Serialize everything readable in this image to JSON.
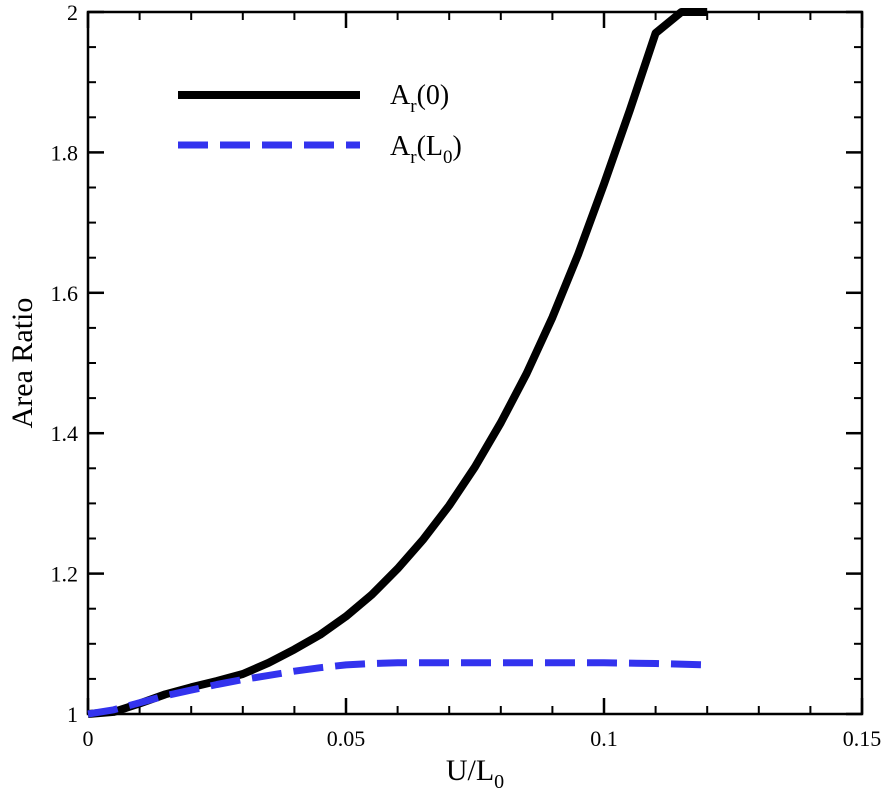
{
  "chart_data": {
    "type": "line",
    "xlabel": {
      "base": "U/L",
      "sub": "0"
    },
    "ylabel": "Area Ratio",
    "xlim": [
      0,
      0.15
    ],
    "ylim": [
      1,
      2
    ],
    "xticks": [
      0,
      0.05,
      0.1,
      0.15
    ],
    "xtick_labels": [
      "0",
      "0.05",
      "0.1",
      "0.15"
    ],
    "yticks": [
      1,
      1.2,
      1.4,
      1.6,
      1.8,
      2
    ],
    "ytick_labels": [
      "1",
      "1.2",
      "1.4",
      "1.6",
      "1.8",
      "2"
    ],
    "grid": false,
    "legend_position": "top-left",
    "series": [
      {
        "legend": {
          "base": "A",
          "sub": "r",
          "suffix": "(0)"
        },
        "color": "#000000",
        "style": "solid",
        "x": [
          0,
          0.005,
          0.01,
          0.015,
          0.02,
          0.025,
          0.03,
          0.035,
          0.04,
          0.045,
          0.05,
          0.055,
          0.06,
          0.065,
          0.07,
          0.075,
          0.08,
          0.085,
          0.09,
          0.095,
          0.1,
          0.105,
          0.11,
          0.115,
          0.12
        ],
        "y": [
          1.0,
          1.003,
          1.015,
          1.028,
          1.038,
          1.047,
          1.057,
          1.073,
          1.092,
          1.113,
          1.139,
          1.17,
          1.207,
          1.249,
          1.297,
          1.352,
          1.415,
          1.485,
          1.565,
          1.655,
          1.755,
          1.86,
          1.97,
          2.0,
          2.0
        ]
      },
      {
        "legend": {
          "base": "A",
          "sub": "r",
          "suffix": "(L",
          "sub2": "0",
          "suffix2": ")"
        },
        "color": "#3333ee",
        "style": "dashed",
        "x": [
          0,
          0.005,
          0.01,
          0.015,
          0.02,
          0.025,
          0.03,
          0.035,
          0.04,
          0.045,
          0.05,
          0.055,
          0.06,
          0.065,
          0.07,
          0.08,
          0.09,
          0.1,
          0.11,
          0.12
        ],
        "y": [
          1.0,
          1.006,
          1.016,
          1.026,
          1.034,
          1.042,
          1.049,
          1.055,
          1.061,
          1.066,
          1.07,
          1.072,
          1.073,
          1.073,
          1.073,
          1.073,
          1.073,
          1.073,
          1.072,
          1.07
        ]
      }
    ]
  }
}
